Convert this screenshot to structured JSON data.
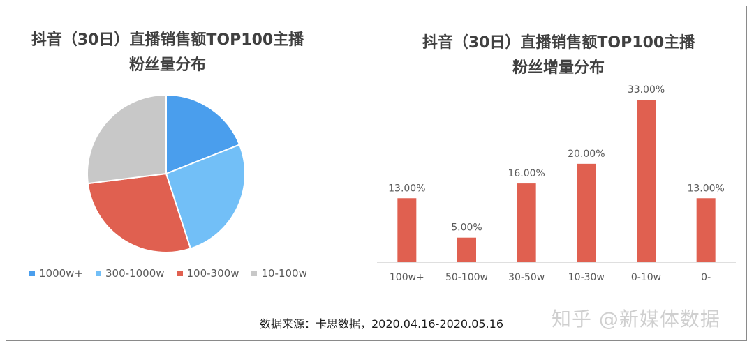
{
  "chart_data": [
    {
      "type": "pie",
      "title": "抖音（30日）直播销售额TOP100主播粉丝量分布",
      "title_lines": [
        "抖音（30日）直播销售额TOP100主播",
        "粉丝量分布"
      ],
      "categories": [
        "1000w+",
        "300-1000w",
        "100-300w",
        "10-100w"
      ],
      "values": [
        19,
        26,
        28,
        27
      ],
      "colors": [
        "#4a9eed",
        "#72bff7",
        "#e06050",
        "#c8c8c8"
      ],
      "legend_position": "bottom"
    },
    {
      "type": "bar",
      "title": "抖音（30日）直播销售额TOP100主播粉丝增量分布",
      "title_lines": [
        "抖音（30日）直播销售额TOP100主播",
        "粉丝增量分布"
      ],
      "categories": [
        "100w+",
        "50-100w",
        "30-50w",
        "10-30w",
        "0-10w",
        "0-"
      ],
      "values": [
        13,
        5,
        16,
        20,
        33,
        13
      ],
      "data_labels": [
        "13.00%",
        "5.00%",
        "16.00%",
        "20.00%",
        "33.00%",
        "13.00%"
      ],
      "ylim": [
        0,
        35
      ],
      "color": "#e06050",
      "grid": false
    }
  ],
  "source_text": "数据来源：卡思数据，2020.04.16-2020.05.16",
  "watermark_text": "知乎 @新媒体数据"
}
